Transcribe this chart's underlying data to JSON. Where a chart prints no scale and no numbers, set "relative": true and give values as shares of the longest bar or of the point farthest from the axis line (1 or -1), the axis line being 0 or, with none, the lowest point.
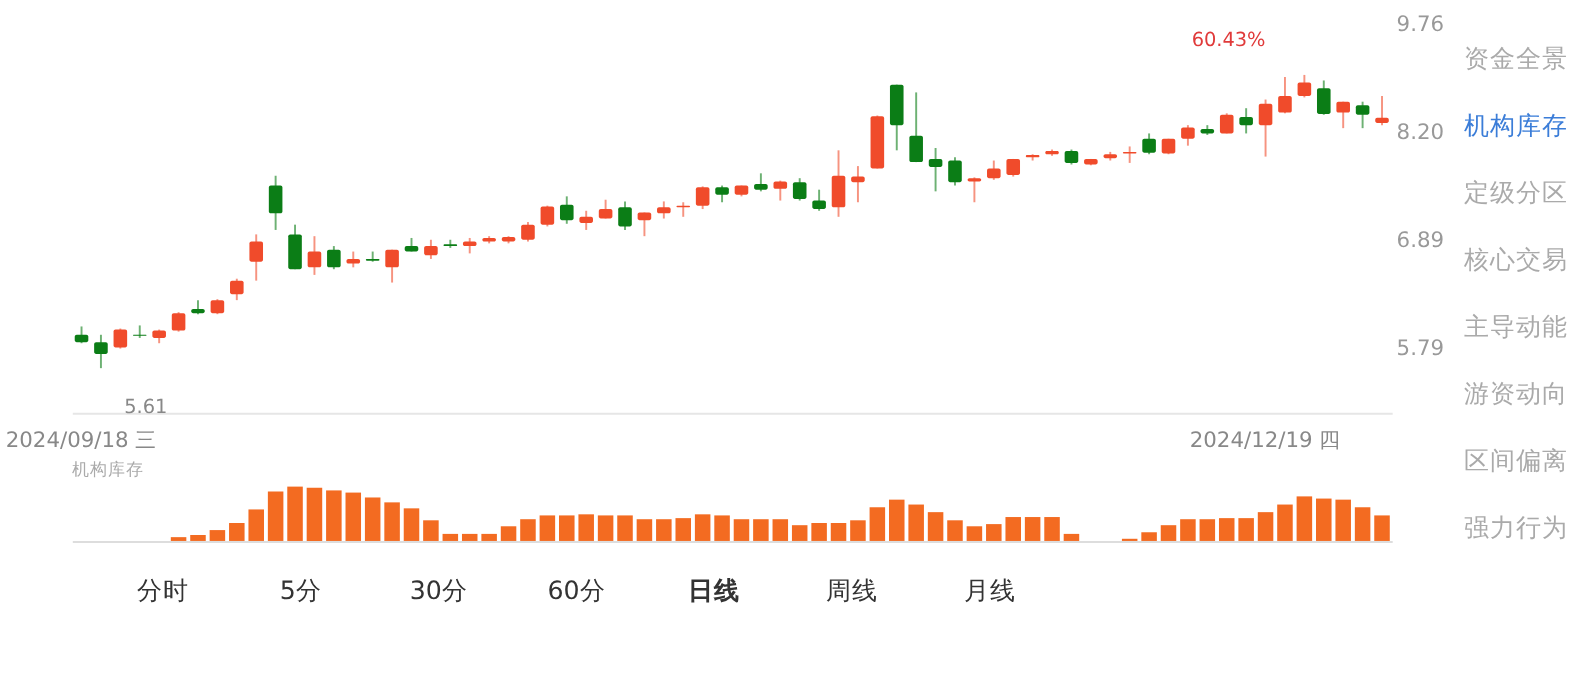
{
  "chart_data": [
    {
      "type": "candlestick",
      "categories": [
        "2024/09/18 三",
        null,
        null,
        null,
        null,
        null,
        null,
        null,
        null,
        null,
        null,
        null,
        null,
        null,
        null,
        null,
        null,
        null,
        null,
        null,
        null,
        null,
        null,
        null,
        null,
        null,
        null,
        null,
        null,
        null,
        null,
        null,
        null,
        null,
        null,
        null,
        null,
        null,
        null,
        null,
        null,
        null,
        null,
        null,
        null,
        null,
        null,
        null,
        null,
        null,
        null,
        null,
        null,
        null,
        null,
        null,
        null,
        null,
        null,
        null,
        null,
        "2024/12/19 四",
        null,
        null,
        null,
        null,
        null,
        null
      ],
      "ohlc": [
        [
          5.92,
          6.0,
          5.84,
          5.85
        ],
        [
          5.85,
          5.92,
          5.61,
          5.74
        ],
        [
          5.8,
          5.98,
          5.79,
          5.97
        ],
        [
          5.92,
          6.01,
          5.89,
          5.91
        ],
        [
          5.89,
          5.97,
          5.84,
          5.96
        ],
        [
          5.96,
          6.14,
          5.95,
          6.13
        ],
        [
          6.17,
          6.26,
          6.12,
          6.13
        ],
        [
          6.13,
          6.27,
          6.12,
          6.26
        ],
        [
          6.32,
          6.48,
          6.26,
          6.46
        ],
        [
          6.66,
          6.96,
          6.46,
          6.88
        ],
        [
          7.53,
          7.65,
          7.01,
          7.2
        ],
        [
          6.96,
          7.07,
          6.58,
          6.58
        ],
        [
          6.6,
          6.94,
          6.52,
          6.77
        ],
        [
          6.79,
          6.83,
          6.58,
          6.6
        ],
        [
          6.64,
          6.77,
          6.6,
          6.69
        ],
        [
          6.69,
          6.77,
          6.66,
          6.67
        ],
        [
          6.6,
          6.79,
          6.44,
          6.79
        ],
        [
          6.83,
          6.92,
          6.77,
          6.77
        ],
        [
          6.73,
          6.9,
          6.69,
          6.83
        ],
        [
          6.85,
          6.9,
          6.81,
          6.83
        ],
        [
          6.83,
          6.92,
          6.75,
          6.88
        ],
        [
          6.88,
          6.94,
          6.86,
          6.92
        ],
        [
          6.88,
          6.94,
          6.86,
          6.93
        ],
        [
          6.9,
          7.1,
          6.88,
          7.07
        ],
        [
          7.07,
          7.29,
          7.05,
          7.28
        ],
        [
          7.3,
          7.4,
          7.08,
          7.12
        ],
        [
          7.09,
          7.23,
          7.01,
          7.16
        ],
        [
          7.14,
          7.36,
          7.14,
          7.25
        ],
        [
          7.27,
          7.34,
          7.01,
          7.05
        ],
        [
          7.12,
          7.21,
          6.94,
          7.21
        ],
        [
          7.2,
          7.34,
          7.14,
          7.27
        ],
        [
          7.27,
          7.33,
          7.16,
          7.29
        ],
        [
          7.29,
          7.52,
          7.25,
          7.51
        ],
        [
          7.51,
          7.53,
          7.33,
          7.42
        ],
        [
          7.42,
          7.53,
          7.4,
          7.53
        ],
        [
          7.55,
          7.68,
          7.46,
          7.48
        ],
        [
          7.49,
          7.59,
          7.35,
          7.58
        ],
        [
          7.57,
          7.62,
          7.35,
          7.37
        ],
        [
          7.35,
          7.48,
          7.23,
          7.25
        ],
        [
          7.27,
          7.97,
          7.16,
          7.65
        ],
        [
          7.57,
          7.77,
          7.33,
          7.64
        ],
        [
          7.74,
          8.43,
          7.74,
          8.42
        ],
        [
          8.86,
          8.86,
          7.97,
          8.3
        ],
        [
          8.16,
          8.75,
          7.82,
          7.82
        ],
        [
          7.86,
          8.0,
          7.46,
          7.76
        ],
        [
          7.84,
          7.88,
          7.53,
          7.57
        ],
        [
          7.58,
          7.63,
          7.33,
          7.62
        ],
        [
          7.62,
          7.84,
          7.6,
          7.74
        ],
        [
          7.66,
          7.86,
          7.64,
          7.86
        ],
        [
          7.88,
          7.92,
          7.84,
          7.91
        ],
        [
          7.92,
          7.98,
          7.9,
          7.96
        ],
        [
          7.96,
          7.98,
          7.79,
          7.81
        ],
        [
          7.79,
          7.86,
          7.78,
          7.86
        ],
        [
          7.87,
          7.95,
          7.84,
          7.92
        ],
        [
          7.93,
          8.02,
          7.81,
          7.95
        ],
        [
          8.12,
          8.19,
          7.92,
          7.94
        ],
        [
          7.93,
          8.12,
          7.92,
          8.12
        ],
        [
          8.12,
          8.3,
          8.03,
          8.27
        ],
        [
          8.25,
          8.3,
          8.17,
          8.19
        ],
        [
          8.19,
          8.46,
          8.19,
          8.44
        ],
        [
          8.41,
          8.53,
          8.19,
          8.3
        ],
        [
          8.3,
          8.65,
          7.89,
          8.59
        ],
        [
          8.47,
          8.97,
          8.46,
          8.7
        ],
        [
          8.7,
          9.0,
          8.68,
          8.89
        ],
        [
          8.81,
          8.92,
          8.44,
          8.45
        ],
        [
          8.47,
          8.62,
          8.26,
          8.62
        ],
        [
          8.57,
          8.62,
          8.26,
          8.44
        ],
        [
          8.33,
          8.7,
          8.3,
          8.4
        ]
      ],
      "colors": [
        "#0b7d16",
        "#0b7d16",
        "#f04b2b",
        "#0b7d16",
        "#f04b2b",
        "#f04b2b",
        "#0b7d16",
        "#f04b2b",
        "#f04b2b",
        "#f04b2b",
        "#0b7d16",
        "#0b7d16",
        "#f04b2b",
        "#0b7d16",
        "#f04b2b",
        "#0b7d16",
        "#f04b2b",
        "#0b7d16",
        "#f04b2b",
        "#0b7d16",
        "#f04b2b",
        "#f04b2b",
        "#f04b2b",
        "#f04b2b",
        "#f04b2b",
        "#0b7d16",
        "#f04b2b",
        "#f04b2b",
        "#0b7d16",
        "#f04b2b",
        "#f04b2b",
        "#f04b2b",
        "#f04b2b",
        "#0b7d16",
        "#f04b2b",
        "#0b7d16",
        "#f04b2b",
        "#0b7d16",
        "#0b7d16",
        "#f04b2b",
        "#f04b2b",
        "#f04b2b",
        "#0b7d16",
        "#0b7d16",
        "#0b7d16",
        "#0b7d16",
        "#f04b2b",
        "#f04b2b",
        "#f04b2b",
        "#f04b2b",
        "#f04b2b",
        "#0b7d16",
        "#f04b2b",
        "#f04b2b",
        "#f04b2b",
        "#0b7d16",
        "#f04b2b",
        "#f04b2b",
        "#0b7d16",
        "#f04b2b",
        "#0b7d16",
        "#f04b2b",
        "#f04b2b",
        "#f04b2b",
        "#0b7d16",
        "#f04b2b",
        "#0b7d16",
        "#f04b2b"
      ],
      "log": true,
      "ylim": [
        5.22,
        9.76
      ],
      "yticks": [
        9.76,
        {
          "value": 8.2,
          "label": "8.20"
        },
        6.89,
        5.79
      ],
      "grid": false,
      "annotations": [
        "5.61",
        "60.43%"
      ]
    },
    {
      "type": "bar",
      "title": "机构库存",
      "relative": true,
      "color": "#f36b21",
      "tick_labels": false,
      "categories": [
        null,
        null,
        null,
        null,
        null,
        null,
        null,
        null,
        null,
        null,
        null,
        null,
        null,
        null,
        null,
        null,
        null,
        null,
        null,
        null,
        null,
        null,
        null,
        null,
        null,
        null,
        null,
        null,
        null,
        null,
        null,
        null,
        null,
        null,
        null,
        null,
        null,
        null,
        null,
        null,
        null,
        null,
        null,
        null,
        null,
        null,
        null,
        null,
        null,
        null,
        null,
        null,
        null,
        null,
        null,
        null,
        null,
        null,
        null,
        null,
        null,
        null,
        null,
        null,
        null,
        null,
        null,
        null
      ],
      "values": [
        null,
        null,
        null,
        null,
        null,
        0.07,
        0.11,
        0.2,
        0.33,
        0.58,
        0.91,
        1,
        0.98,
        0.93,
        0.89,
        0.8,
        0.71,
        0.6,
        0.38,
        0.13,
        0.13,
        0.13,
        0.27,
        0.4,
        0.47,
        0.47,
        0.49,
        0.47,
        0.47,
        0.4,
        0.4,
        0.42,
        0.49,
        0.47,
        0.4,
        0.4,
        0.4,
        0.29,
        0.33,
        0.33,
        0.38,
        0.62,
        0.76,
        0.67,
        0.53,
        0.38,
        0.27,
        0.31,
        0.44,
        0.44,
        0.44,
        0.13,
        null,
        null,
        0.04,
        0.16,
        0.29,
        0.4,
        0.4,
        0.42,
        0.42,
        0.53,
        0.67,
        0.82,
        0.78,
        0.76,
        0.62,
        0.47
      ],
      "annotations": [
        "分时",
        "5分",
        "30分",
        "60分",
        "日线",
        "周线",
        "月线"
      ]
    },
    {
      "type": "other",
      "annotations": [
        "资金全景",
        "机构库存",
        "定级分区",
        "核心交易",
        "主导动能",
        "游资动向",
        "区间偏离",
        "强力行为"
      ],
      "colors": [
        "#aaaaaa",
        "#3b7dd8",
        "#aaaaaa",
        "#aaaaaa",
        "#aaaaaa",
        "#aaaaaa",
        "#aaaaaa",
        "#aaaaaa"
      ]
    }
  ]
}
